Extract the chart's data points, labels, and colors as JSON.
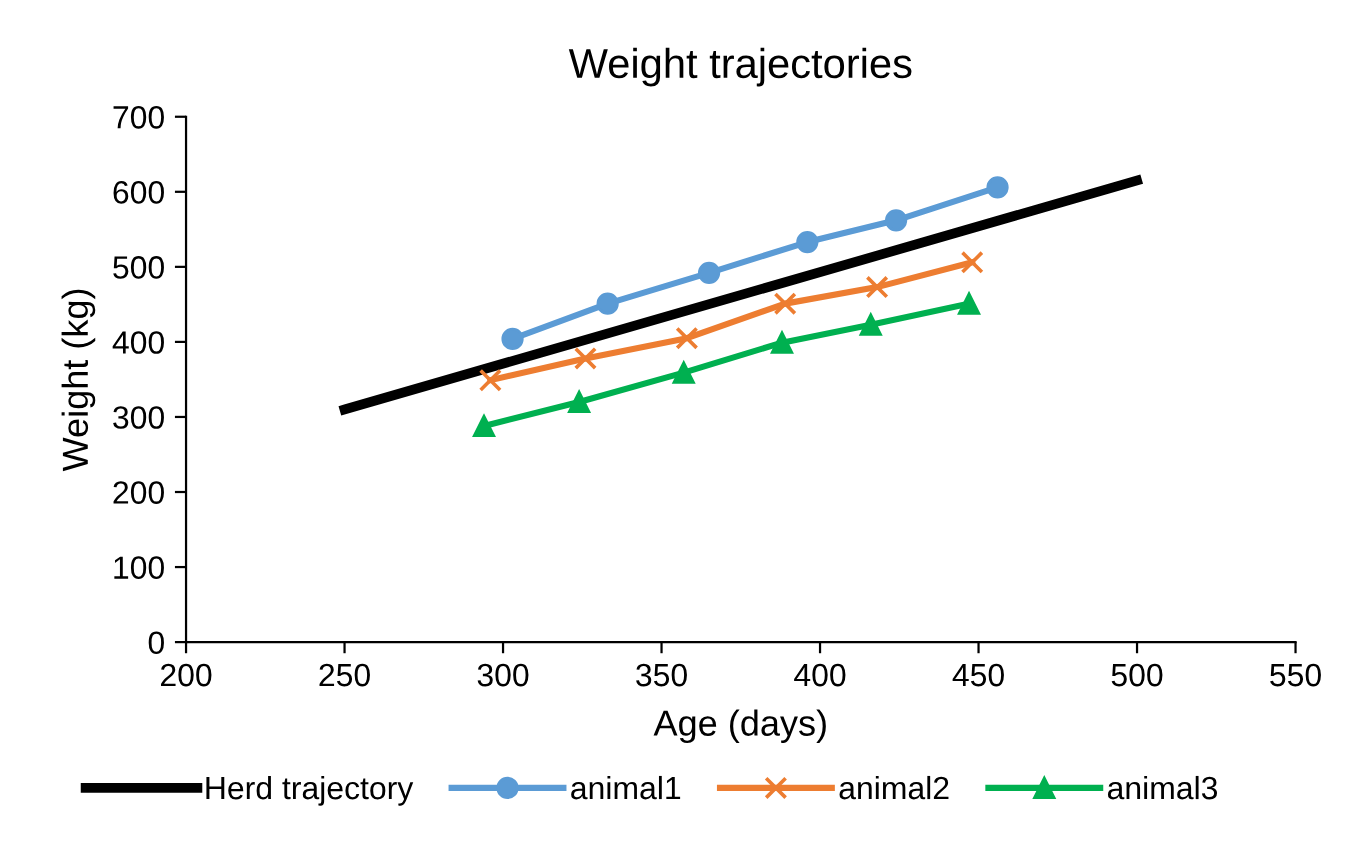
{
  "chart_data": {
    "type": "line",
    "title": "Weight trajectories",
    "xlabel": "Age (days)",
    "ylabel": "Weight (kg)",
    "xlim": [
      200,
      550
    ],
    "xticks": [
      200,
      250,
      300,
      350,
      400,
      450,
      500,
      550
    ],
    "ylim": [
      0,
      700
    ],
    "yticks": [
      0,
      100,
      200,
      300,
      400,
      500,
      600,
      700
    ],
    "grid": false,
    "legend": "bottom",
    "series": [
      {
        "name": "Herd trajectory",
        "color": "#000000",
        "marker": "none",
        "x": [
          250,
          500
        ],
        "values": [
          310,
          615
        ]
      },
      {
        "name": "animal1",
        "color": "#5b9bd5",
        "marker": "circle",
        "x": [
          303,
          333,
          365,
          396,
          424,
          456
        ],
        "values": [
          404,
          451,
          492,
          533,
          562,
          606
        ]
      },
      {
        "name": "animal2",
        "color": "#ed7d31",
        "marker": "cross",
        "x": [
          296,
          326,
          358,
          389,
          418,
          448
        ],
        "values": [
          349,
          378,
          405,
          451,
          473,
          506
        ]
      },
      {
        "name": "animal3",
        "color": "#00b050",
        "marker": "triangle",
        "x": [
          294,
          324,
          357,
          388,
          416,
          447
        ],
        "values": [
          288,
          320,
          359,
          399,
          423,
          451
        ]
      }
    ]
  }
}
